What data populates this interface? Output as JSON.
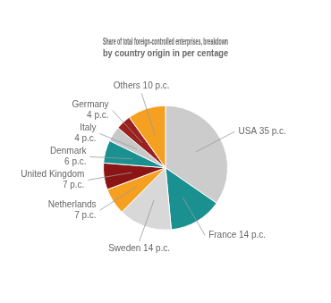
{
  "chart_data": {
    "type": "pie",
    "title": [
      "Share of total foreign-controlled enterprises, breakdown",
      "by country origin in per centage"
    ],
    "categories": [
      "USA 35 p.c.",
      "France 14 p.c.",
      "Sweden 14 p.c.",
      "Netherlands\n7 p.c.",
      "United Kingdom\n7 p.c.",
      "Denmark\n6 p.c.",
      "Italy\n4 p.c.",
      "Germany\n4 p.c.",
      "Others 10 p.c."
    ],
    "values": [
      35,
      14,
      14,
      7,
      7,
      6,
      4,
      4,
      10
    ],
    "colors": [
      "#cccccc",
      "#1a9090",
      "#d8d8d8",
      "#f5a020",
      "#8b1515",
      "#1a9090",
      "#c8c8c8",
      "#9b2020",
      "#f5a020"
    ],
    "legend": false
  }
}
